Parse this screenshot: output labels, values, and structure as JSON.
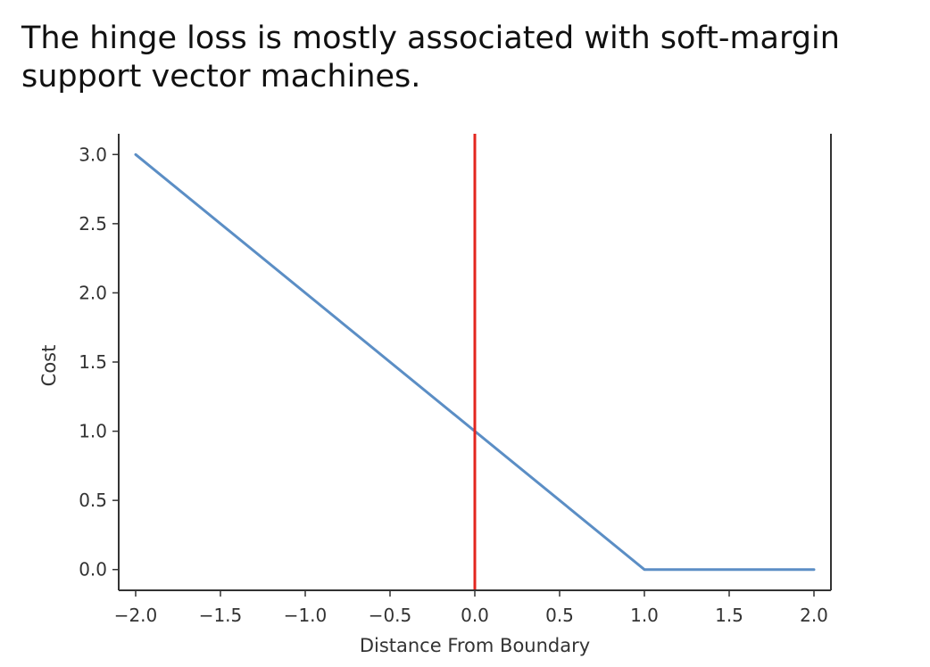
{
  "caption": "The hinge loss is mostly associated with soft-margin support vector machines.",
  "chart_data": {
    "type": "line",
    "title": "",
    "xlabel": "Distance From Boundary",
    "ylabel": "Cost",
    "xlim": [
      -2.1,
      2.1
    ],
    "ylim": [
      -0.15,
      3.15
    ],
    "xticks": [
      -2.0,
      -1.5,
      -1.0,
      -0.5,
      0.0,
      0.5,
      1.0,
      1.5,
      2.0
    ],
    "xtick_labels": [
      "−2.0",
      "−1.5",
      "−1.0",
      "−0.5",
      "0.0",
      "0.5",
      "1.0",
      "1.5",
      "2.0"
    ],
    "yticks": [
      0.0,
      0.5,
      1.0,
      1.5,
      2.0,
      2.5,
      3.0
    ],
    "ytick_labels": [
      "0.0",
      "0.5",
      "1.0",
      "1.5",
      "2.0",
      "2.5",
      "3.0"
    ],
    "grid": false,
    "series": [
      {
        "x": [
          -2.0,
          1.0,
          2.0
        ],
        "y": [
          3.0,
          0.0,
          0.0
        ],
        "color": "#5b8ec5"
      }
    ],
    "vlines": [
      {
        "x": 0.0,
        "color": "#e3261f"
      }
    ],
    "axis_color": "#333333"
  }
}
